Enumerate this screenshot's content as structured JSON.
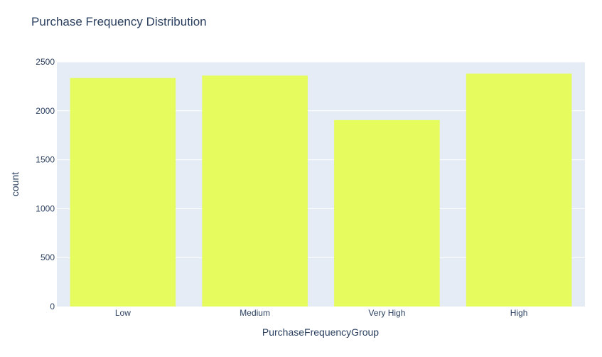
{
  "chart_data": {
    "type": "bar",
    "title": "Purchase Frequency Distribution",
    "xlabel": "PurchaseFrequencyGroup",
    "ylabel": "count",
    "categories": [
      "Low",
      "Medium",
      "Very High",
      "High"
    ],
    "values": [
      2335,
      2360,
      1905,
      2380
    ],
    "ylim": [
      0,
      2500
    ],
    "yticks": [
      0,
      500,
      1000,
      1500,
      2000,
      2500
    ],
    "ytick_labels": [
      "0",
      "500",
      "1000",
      "1500",
      "2000",
      "2500"
    ],
    "grid": true,
    "legend": "none",
    "colors": {
      "bar": "#e5fb5e",
      "plot_background": "#e5ecf6",
      "gridline": "#ffffff",
      "text": "#2a3f5f"
    }
  }
}
